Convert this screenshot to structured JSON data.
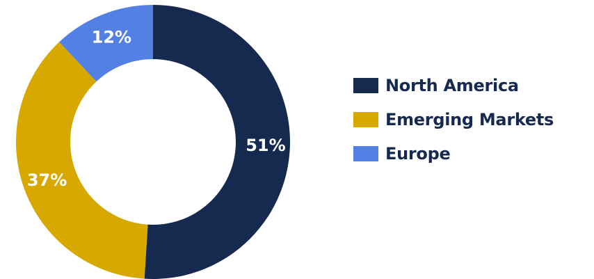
{
  "chart_data": {
    "type": "pie",
    "subtype": "donut",
    "categories": [
      "North America",
      "Emerging Markets",
      "Europe"
    ],
    "values": [
      51,
      37,
      12
    ],
    "labels": [
      "51%",
      "37%",
      "12%"
    ],
    "colors": [
      "#162a50",
      "#d6a800",
      "#5281e3"
    ],
    "legend_placement": "right",
    "start_angle": "top, clockwise"
  },
  "legend": {
    "items": [
      {
        "label": "North America",
        "color": "#162a50"
      },
      {
        "label": "Emerging Markets",
        "color": "#d6a800"
      },
      {
        "label": "Europe",
        "color": "#5281e3"
      }
    ]
  }
}
